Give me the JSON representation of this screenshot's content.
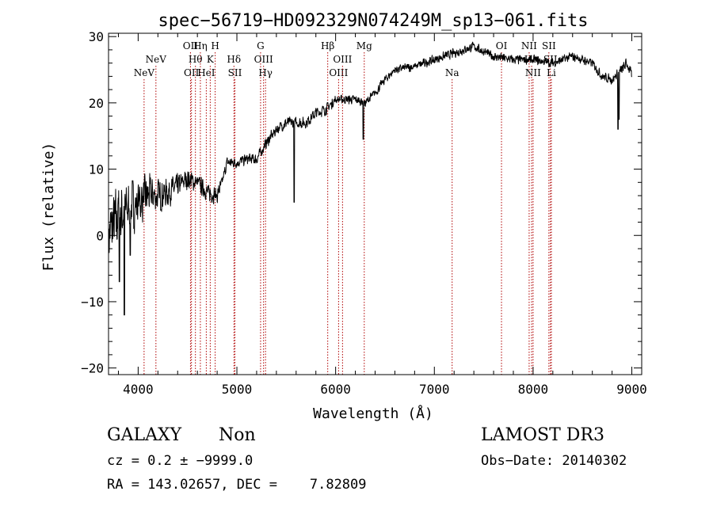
{
  "chart_data": {
    "type": "line",
    "title": "spec−56719−HD092329N074249M_sp13−061.fits",
    "xlabel": "Wavelength (Å)",
    "ylabel": "Flux (relative)",
    "xlim": [
      3700,
      9100
    ],
    "ylim": [
      -21,
      30.5
    ],
    "xticks": [
      4000,
      5000,
      6000,
      7000,
      8000,
      9000
    ],
    "yticks": [
      -20,
      -10,
      0,
      10,
      20,
      30
    ],
    "ytick_labels": [
      "−20",
      "−10",
      "0",
      "10",
      "20",
      "30"
    ],
    "grid": false,
    "series": [
      {
        "name": "spectrum",
        "color": "#000000",
        "anchors": [
          {
            "x": 3700,
            "y": 0,
            "noise": 5.5
          },
          {
            "x": 3800,
            "y": 3,
            "noise": 6
          },
          {
            "x": 3900,
            "y": 4,
            "noise": 5
          },
          {
            "x": 4000,
            "y": 5,
            "noise": 4.5
          },
          {
            "x": 4100,
            "y": 6,
            "noise": 3.5
          },
          {
            "x": 4200,
            "y": 6,
            "noise": 3
          },
          {
            "x": 4300,
            "y": 6.5,
            "noise": 2.5
          },
          {
            "x": 4400,
            "y": 7.5,
            "noise": 2
          },
          {
            "x": 4500,
            "y": 8.5,
            "noise": 1.8
          },
          {
            "x": 4600,
            "y": 8,
            "noise": 1.5
          },
          {
            "x": 4700,
            "y": 6.5,
            "noise": 1.5
          },
          {
            "x": 4800,
            "y": 6,
            "noise": 1.5
          },
          {
            "x": 4850,
            "y": 8,
            "noise": 1
          },
          {
            "x": 4900,
            "y": 11,
            "noise": 1
          },
          {
            "x": 5000,
            "y": 11,
            "noise": 1
          },
          {
            "x": 5100,
            "y": 11.5,
            "noise": 1
          },
          {
            "x": 5200,
            "y": 11.5,
            "noise": 1
          },
          {
            "x": 5300,
            "y": 14,
            "noise": 1
          },
          {
            "x": 5400,
            "y": 16,
            "noise": 1
          },
          {
            "x": 5500,
            "y": 17,
            "noise": 1
          },
          {
            "x": 5600,
            "y": 17,
            "noise": 1
          },
          {
            "x": 5700,
            "y": 17,
            "noise": 1
          },
          {
            "x": 5800,
            "y": 18.5,
            "noise": 1
          },
          {
            "x": 5900,
            "y": 19,
            "noise": 1
          },
          {
            "x": 6000,
            "y": 20.5,
            "noise": 0.8
          },
          {
            "x": 6100,
            "y": 20.5,
            "noise": 0.8
          },
          {
            "x": 6200,
            "y": 20.5,
            "noise": 0.8
          },
          {
            "x": 6300,
            "y": 20,
            "noise": 0.8
          },
          {
            "x": 6400,
            "y": 21.5,
            "noise": 0.8
          },
          {
            "x": 6500,
            "y": 23.5,
            "noise": 0.8
          },
          {
            "x": 6600,
            "y": 25,
            "noise": 0.8
          },
          {
            "x": 6800,
            "y": 25.5,
            "noise": 0.8
          },
          {
            "x": 7000,
            "y": 26.5,
            "noise": 0.8
          },
          {
            "x": 7200,
            "y": 27.5,
            "noise": 0.8
          },
          {
            "x": 7400,
            "y": 28.5,
            "noise": 0.8
          },
          {
            "x": 7600,
            "y": 27,
            "noise": 0.8
          },
          {
            "x": 7800,
            "y": 26.5,
            "noise": 0.8
          },
          {
            "x": 8000,
            "y": 26.5,
            "noise": 0.8
          },
          {
            "x": 8200,
            "y": 26,
            "noise": 0.8
          },
          {
            "x": 8400,
            "y": 27,
            "noise": 0.8
          },
          {
            "x": 8600,
            "y": 26,
            "noise": 0.8
          },
          {
            "x": 8700,
            "y": 24,
            "noise": 0.8
          },
          {
            "x": 8800,
            "y": 23.5,
            "noise": 0.8
          },
          {
            "x": 8900,
            "y": 25,
            "noise": 1
          },
          {
            "x": 8950,
            "y": 26,
            "noise": 1
          },
          {
            "x": 9000,
            "y": 24,
            "noise": 1
          }
        ],
        "dips": [
          {
            "x": 3860,
            "y": -12
          },
          {
            "x": 3810,
            "y": -7
          },
          {
            "x": 3920,
            "y": -3
          },
          {
            "x": 5580,
            "y": 5
          },
          {
            "x": 6280,
            "y": 14.5
          },
          {
            "x": 8860,
            "y": 16
          },
          {
            "x": 8870,
            "y": 17.5
          },
          {
            "x": 9005,
            "y": 0
          }
        ]
      }
    ],
    "lines": [
      {
        "label": "NeV",
        "x": 4060,
        "row": 3
      },
      {
        "label": "NeV",
        "x": 4180,
        "row": 2
      },
      {
        "label": "OII",
        "x": 4530,
        "row": 1
      },
      {
        "label": "OII",
        "x": 4540,
        "row": 3
      },
      {
        "label": "Hθ",
        "x": 4580,
        "row": 2
      },
      {
        "label": "Hη",
        "x": 4630,
        "row": 1
      },
      {
        "label": "HeI",
        "x": 4690,
        "row": 3
      },
      {
        "label": "K",
        "x": 4730,
        "row": 2
      },
      {
        "label": "H",
        "x": 4780,
        "row": 1
      },
      {
        "label": "Hδ",
        "x": 4970,
        "row": 2
      },
      {
        "label": "SII",
        "x": 4980,
        "row": 3
      },
      {
        "label": "G",
        "x": 5240,
        "row": 1
      },
      {
        "label": "OIII",
        "x": 5270,
        "row": 2
      },
      {
        "label": "Hγ",
        "x": 5290,
        "row": 3
      },
      {
        "label": "Hβ",
        "x": 5920,
        "row": 1
      },
      {
        "label": "OIII",
        "x": 6030,
        "row": 3
      },
      {
        "label": "OIII",
        "x": 6070,
        "row": 2
      },
      {
        "label": "Mg",
        "x": 6290,
        "row": 1
      },
      {
        "label": "Na",
        "x": 7180,
        "row": 3
      },
      {
        "label": "OI",
        "x": 7680,
        "row": 1
      },
      {
        "label": "NII",
        "x": 7960,
        "row": 1
      },
      {
        "label": "Hα",
        "x": 7985,
        "row": 2
      },
      {
        "label": "NII",
        "x": 8000,
        "row": 3
      },
      {
        "label": "SII",
        "x": 8160,
        "row": 1
      },
      {
        "label": "SII",
        "x": 8175,
        "row": 2
      },
      {
        "label": "Li",
        "x": 8185,
        "row": 3
      }
    ],
    "line_color": "#b00000"
  },
  "info": {
    "object_class": "GALAXY",
    "subclass": "Non",
    "survey": "LAMOST DR3",
    "cz": "cz = 0.2 ± −9999.0",
    "obs_date": "Obs−Date: 20140302",
    "coords": "RA = 143.02657, DEC =    7.82809"
  }
}
